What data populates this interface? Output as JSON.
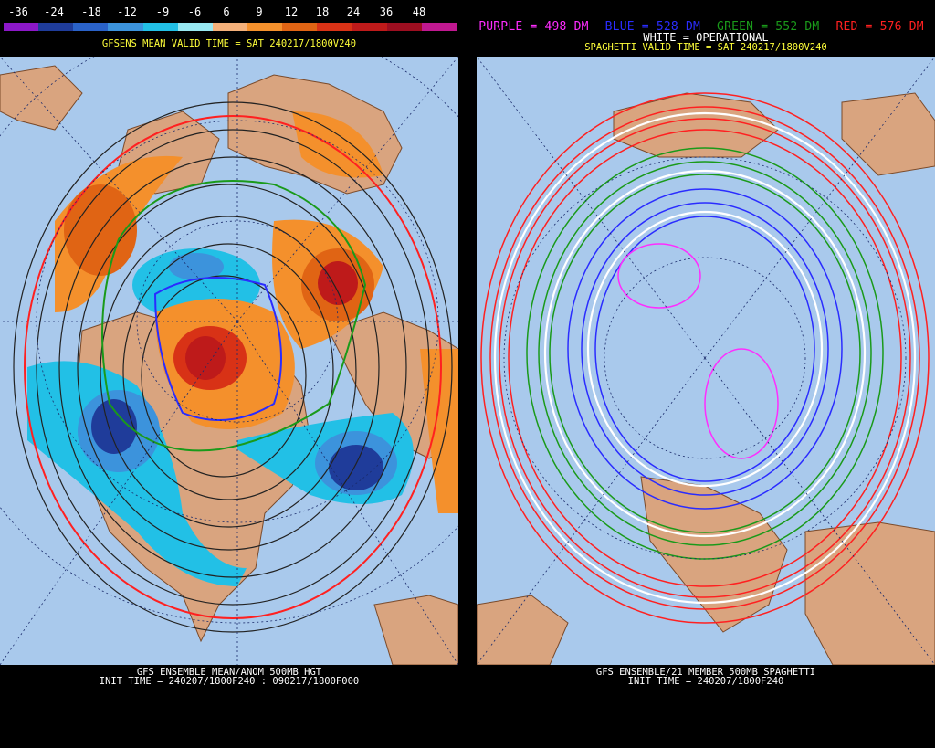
{
  "left": {
    "colorbar": {
      "ticks": [
        "-36",
        "-24",
        "-18",
        "-12",
        "-9",
        "-6",
        "6",
        "9",
        "12",
        "18",
        "24",
        "36",
        "48"
      ],
      "colors": [
        "#8c18c8",
        "#1f3c9a",
        "#2a62c8",
        "#3c93dc",
        "#22c0e6",
        "#98e8f2",
        "#f4b07a",
        "#f4902c",
        "#e06414",
        "#d83216",
        "#be1a1a",
        "#9c0e20",
        "#c01890"
      ]
    },
    "valid_title": "GFSENS MEAN VALID TIME = SAT 240217/1800V240",
    "footer_line1": "GFS ENSEMBLE MEAN/ANOM 500MB HGT",
    "footer_line2": "INIT TIME = 240207/1800F240 : 090217/1800F000"
  },
  "right": {
    "legend": [
      {
        "text": "PURPLE = 498 DM",
        "color": "#ff2cff"
      },
      {
        "text": "BLUE = 528 DM",
        "color": "#2a2cff"
      },
      {
        "text": "GREEN = 552 DM",
        "color": "#1a9a1a"
      },
      {
        "text": "RED = 576 DM",
        "color": "#ff2020"
      }
    ],
    "operational": "WHITE = OPERATIONAL",
    "valid_title": "SPAGHETTI VALID TIME = SAT 240217/1800V240",
    "footer_line1": "GFS ENSEMBLE/21 MEMBER 500MB SPAGHETTI",
    "footer_line2": "INIT TIME = 240207/1800F240"
  }
}
